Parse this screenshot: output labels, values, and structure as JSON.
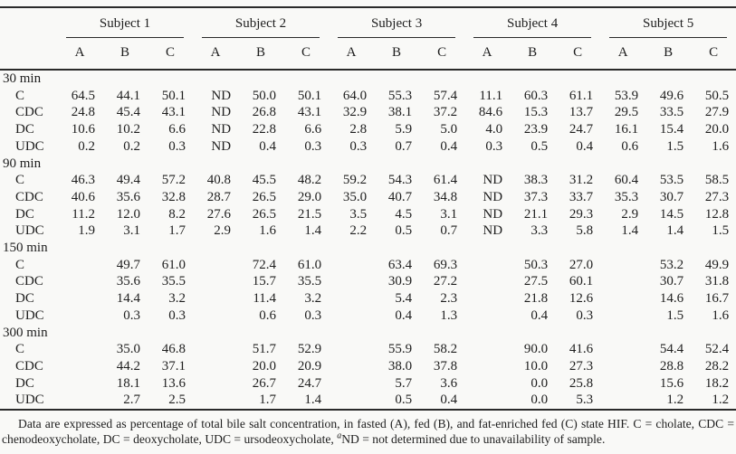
{
  "table": {
    "subjects": [
      "Subject 1",
      "Subject 2",
      "Subject 3",
      "Subject 4",
      "Subject 5"
    ],
    "sub_columns": [
      "A",
      "B",
      "C"
    ],
    "sections": [
      {
        "label": "30 min",
        "rows": [
          {
            "label": "C",
            "values": [
              "64.5",
              "44.1",
              "50.1",
              "ND",
              "50.0",
              "50.1",
              "64.0",
              "55.3",
              "57.4",
              "11.1",
              "60.3",
              "61.1",
              "53.9",
              "49.6",
              "50.5"
            ]
          },
          {
            "label": "CDC",
            "values": [
              "24.8",
              "45.4",
              "43.1",
              "ND",
              "26.8",
              "43.1",
              "32.9",
              "38.1",
              "37.2",
              "84.6",
              "15.3",
              "13.7",
              "29.5",
              "33.5",
              "27.9"
            ]
          },
          {
            "label": "DC",
            "values": [
              "10.6",
              "10.2",
              "6.6",
              "ND",
              "22.8",
              "6.6",
              "2.8",
              "5.9",
              "5.0",
              "4.0",
              "23.9",
              "24.7",
              "16.1",
              "15.4",
              "20.0"
            ]
          },
          {
            "label": "UDC",
            "values": [
              "0.2",
              "0.2",
              "0.3",
              "ND",
              "0.4",
              "0.3",
              "0.3",
              "0.7",
              "0.4",
              "0.3",
              "0.5",
              "0.4",
              "0.6",
              "1.5",
              "1.6"
            ]
          }
        ]
      },
      {
        "label": "90 min",
        "rows": [
          {
            "label": "C",
            "values": [
              "46.3",
              "49.4",
              "57.2",
              "40.8",
              "45.5",
              "48.2",
              "59.2",
              "54.3",
              "61.4",
              "ND",
              "38.3",
              "31.2",
              "60.4",
              "53.5",
              "58.5"
            ]
          },
          {
            "label": "CDC",
            "values": [
              "40.6",
              "35.6",
              "32.8",
              "28.7",
              "26.5",
              "29.0",
              "35.0",
              "40.7",
              "34.8",
              "ND",
              "37.3",
              "33.7",
              "35.3",
              "30.7",
              "27.3"
            ]
          },
          {
            "label": "DC",
            "values": [
              "11.2",
              "12.0",
              "8.2",
              "27.6",
              "26.5",
              "21.5",
              "3.5",
              "4.5",
              "3.1",
              "ND",
              "21.1",
              "29.3",
              "2.9",
              "14.5",
              "12.8"
            ]
          },
          {
            "label": "UDC",
            "values": [
              "1.9",
              "3.1",
              "1.7",
              "2.9",
              "1.6",
              "1.4",
              "2.2",
              "0.5",
              "0.7",
              "ND",
              "3.3",
              "5.8",
              "1.4",
              "1.4",
              "1.5"
            ]
          }
        ]
      },
      {
        "label": "150 min",
        "rows": [
          {
            "label": "C",
            "values": [
              "",
              "49.7",
              "61.0",
              "",
              "72.4",
              "61.0",
              "",
              "63.4",
              "69.3",
              "",
              "50.3",
              "27.0",
              "",
              "53.2",
              "49.9"
            ]
          },
          {
            "label": "CDC",
            "values": [
              "",
              "35.6",
              "35.5",
              "",
              "15.7",
              "35.5",
              "",
              "30.9",
              "27.2",
              "",
              "27.5",
              "60.1",
              "",
              "30.7",
              "31.8"
            ]
          },
          {
            "label": "DC",
            "values": [
              "",
              "14.4",
              "3.2",
              "",
              "11.4",
              "3.2",
              "",
              "5.4",
              "2.3",
              "",
              "21.8",
              "12.6",
              "",
              "14.6",
              "16.7"
            ]
          },
          {
            "label": "UDC",
            "values": [
              "",
              "0.3",
              "0.3",
              "",
              "0.6",
              "0.3",
              "",
              "0.4",
              "1.3",
              "",
              "0.4",
              "0.3",
              "",
              "1.5",
              "1.6"
            ]
          }
        ]
      },
      {
        "label": "300 min",
        "rows": [
          {
            "label": "C",
            "values": [
              "",
              "35.0",
              "46.8",
              "",
              "51.7",
              "52.9",
              "",
              "55.9",
              "58.2",
              "",
              "90.0",
              "41.6",
              "",
              "54.4",
              "52.4"
            ]
          },
          {
            "label": "CDC",
            "values": [
              "",
              "44.2",
              "37.1",
              "",
              "20.0",
              "20.9",
              "",
              "38.0",
              "37.8",
              "",
              "10.0",
              "27.3",
              "",
              "28.8",
              "28.2"
            ]
          },
          {
            "label": "DC",
            "values": [
              "",
              "18.1",
              "13.6",
              "",
              "26.7",
              "24.7",
              "",
              "5.7",
              "3.6",
              "",
              "0.0",
              "25.8",
              "",
              "15.6",
              "18.2"
            ]
          },
          {
            "label": "UDC",
            "values": [
              "",
              "2.7",
              "2.5",
              "",
              "1.7",
              "1.4",
              "",
              "0.5",
              "0.4",
              "",
              "0.0",
              "5.3",
              "",
              "1.2",
              "1.2"
            ]
          }
        ]
      }
    ]
  },
  "footnote": {
    "part1": "Data are expressed as percentage of total bile salt concentration, in fasted (A), fed (B), and fat-enriched fed (C) state HIF. C = cholate, CDC = chenodeoxycholate, DC = deoxycholate, UDC = ursodeoxycholate, ",
    "sup": "a",
    "part2": "ND = not determined due to unavailability of sample."
  }
}
